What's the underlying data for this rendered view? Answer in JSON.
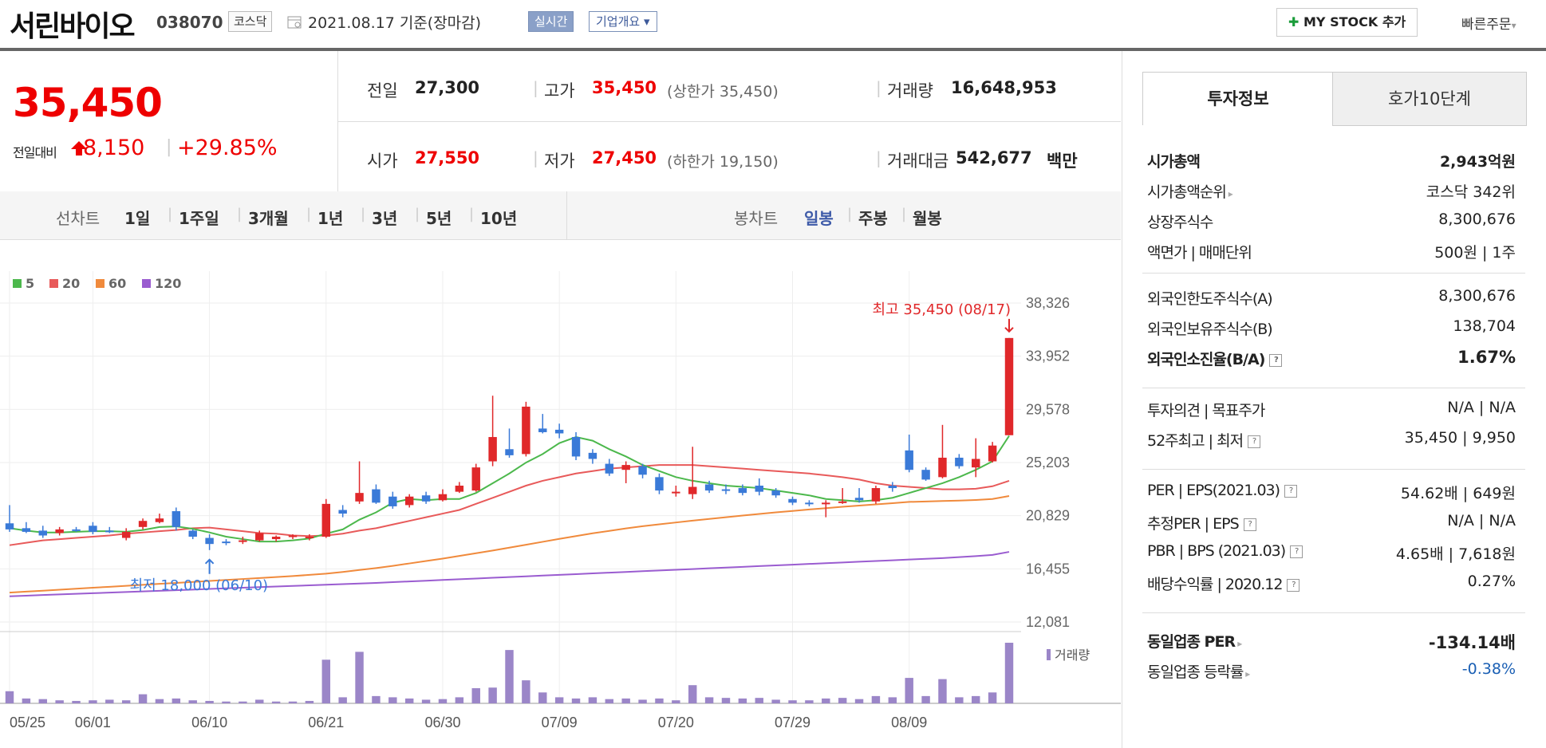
{
  "header": {
    "stock_name": "서린바이오",
    "stock_code": "038070",
    "market": "코스닥",
    "date_text": "2021.08.17 기준(장마감)",
    "realtime_label": "실시간",
    "company_label": "기업개요",
    "mystock_label": "MY STOCK 추가",
    "quick_order_label": "빠른주문"
  },
  "price": {
    "current": "35,450",
    "change_label": "전일대비",
    "change": "8,150",
    "change_pct": "+29.85%",
    "prev_label": "전일",
    "prev": "27,300",
    "high_label": "고가",
    "high": "35,450",
    "upper_limit": "(상한가 35,450)",
    "volume_label": "거래량",
    "volume": "16,648,953",
    "open_label": "시가",
    "open": "27,550",
    "low_label": "저가",
    "low": "27,450",
    "lower_limit": "(하한가 19,150)",
    "amount_label": "거래대금",
    "amount": "542,677",
    "amount_unit": "백만"
  },
  "period_bar": {
    "line_label": "선차트",
    "line_items": [
      "1일",
      "1주일",
      "3개월",
      "1년",
      "3년",
      "5년",
      "10년"
    ],
    "candle_label": "봉차트",
    "candle_items": [
      "일봉",
      "주봉",
      "월봉"
    ],
    "candle_selected": "일봉"
  },
  "panel": {
    "tab_active": "투자정보",
    "tab_other": "호가10단계",
    "rows1": [
      {
        "k": "시가총액",
        "v": "2,943억원"
      },
      {
        "k": "시가총액순위",
        "v": "코스닥 342위"
      },
      {
        "k": "상장주식수",
        "v": "8,300,676"
      },
      {
        "k": "액면가 | 매매단위",
        "v": "500원 | 1주"
      }
    ],
    "rows2": [
      {
        "k": "외국인한도주식수(A)",
        "v": "8,300,676"
      },
      {
        "k": "외국인보유주식수(B)",
        "v": "138,704"
      },
      {
        "k": "외국인소진율(B/A)",
        "v": "1.67%"
      }
    ],
    "rows3": [
      {
        "k": "투자의견 | 목표주가",
        "v": "N/A | N/A"
      },
      {
        "k": "52주최고 | 최저",
        "v": "35,450 | 9,950"
      }
    ],
    "rows4": [
      {
        "k": "PER | EPS(2021.03)",
        "v": "54.62배 | 649원"
      },
      {
        "k": "추정PER | EPS",
        "v": "N/A | N/A"
      },
      {
        "k": "PBR | BPS (2021.03)",
        "v": "4.65배 | 7,618원"
      },
      {
        "k": "배당수익률 | 2020.12",
        "v": "0.27%"
      }
    ],
    "rows5": [
      {
        "k": "동일업종 PER",
        "v": "-134.14배"
      },
      {
        "k": "동일업종 등락률",
        "v": "-0.38%"
      }
    ],
    "help_glyph": "?",
    "colors": {
      "red": "#e00000",
      "blue": "#1a5fb4"
    }
  },
  "chart_data": {
    "type": "candlestick",
    "legend": [
      {
        "name": "5",
        "color": "#4cb84c"
      },
      {
        "name": "20",
        "color": "#e85a5a"
      },
      {
        "name": "60",
        "color": "#f08a3c"
      },
      {
        "name": "120",
        "color": "#9a5cd0"
      }
    ],
    "yticks": [
      "38,326",
      "33,952",
      "29,578",
      "25,203",
      "20,829",
      "16,455",
      "12,081"
    ],
    "ylim": [
      12081,
      38326
    ],
    "xticks": [
      "05/25",
      "06/01",
      "06/10",
      "06/21",
      "06/30",
      "07/09",
      "07/20",
      "07/29",
      "08/09"
    ],
    "volume_label": "거래량",
    "max_annotation": "최고 35,450 (08/17)",
    "min_annotation": "최저 18,000 (06/10)",
    "colors": {
      "up": "#e0282a",
      "down": "#3a7ad8"
    },
    "candles": [
      {
        "o": 20200,
        "h": 21700,
        "l": 19500,
        "c": 19700,
        "v": 0.2
      },
      {
        "o": 19800,
        "h": 20300,
        "l": 19400,
        "c": 19500,
        "v": 0.08
      },
      {
        "o": 19600,
        "h": 20000,
        "l": 19000,
        "c": 19200,
        "v": 0.07
      },
      {
        "o": 19400,
        "h": 19900,
        "l": 19200,
        "c": 19700,
        "v": 0.05
      },
      {
        "o": 19700,
        "h": 19900,
        "l": 19500,
        "c": 19600,
        "v": 0.04
      },
      {
        "o": 20000,
        "h": 20300,
        "l": 19300,
        "c": 19500,
        "v": 0.05
      },
      {
        "o": 19600,
        "h": 19900,
        "l": 19400,
        "c": 19500,
        "v": 0.06
      },
      {
        "o": 19000,
        "h": 19800,
        "l": 18800,
        "c": 19500,
        "v": 0.05
      },
      {
        "o": 19900,
        "h": 20600,
        "l": 19700,
        "c": 20400,
        "v": 0.15
      },
      {
        "o": 20300,
        "h": 21000,
        "l": 20200,
        "c": 20600,
        "v": 0.07
      },
      {
        "o": 21200,
        "h": 21500,
        "l": 19600,
        "c": 19900,
        "v": 0.08
      },
      {
        "o": 19600,
        "h": 19700,
        "l": 18900,
        "c": 19100,
        "v": 0.05
      },
      {
        "o": 19000,
        "h": 19300,
        "l": 18000,
        "c": 18500,
        "v": 0.04
      },
      {
        "o": 18700,
        "h": 18900,
        "l": 18400,
        "c": 18600,
        "v": 0.03
      },
      {
        "o": 18700,
        "h": 19100,
        "l": 18500,
        "c": 18800,
        "v": 0.03
      },
      {
        "o": 18800,
        "h": 19600,
        "l": 18700,
        "c": 19400,
        "v": 0.06
      },
      {
        "o": 18900,
        "h": 19200,
        "l": 18700,
        "c": 19100,
        "v": 0.03
      },
      {
        "o": 19100,
        "h": 19300,
        "l": 18900,
        "c": 19200,
        "v": 0.03
      },
      {
        "o": 19000,
        "h": 19300,
        "l": 18800,
        "c": 19100,
        "v": 0.04
      },
      {
        "o": 19100,
        "h": 22200,
        "l": 19000,
        "c": 21800,
        "v": 0.72
      },
      {
        "o": 21300,
        "h": 21700,
        "l": 20700,
        "c": 21000,
        "v": 0.1
      },
      {
        "o": 22000,
        "h": 25300,
        "l": 21800,
        "c": 22700,
        "v": 0.85
      },
      {
        "o": 23000,
        "h": 23400,
        "l": 21800,
        "c": 21900,
        "v": 0.12
      },
      {
        "o": 22400,
        "h": 22800,
        "l": 21400,
        "c": 21600,
        "v": 0.1
      },
      {
        "o": 21700,
        "h": 22600,
        "l": 21500,
        "c": 22400,
        "v": 0.08
      },
      {
        "o": 22500,
        "h": 22800,
        "l": 21800,
        "c": 22000,
        "v": 0.06
      },
      {
        "o": 22100,
        "h": 23000,
        "l": 22000,
        "c": 22600,
        "v": 0.07
      },
      {
        "o": 22800,
        "h": 23600,
        "l": 22700,
        "c": 23300,
        "v": 0.1
      },
      {
        "o": 22900,
        "h": 25100,
        "l": 22800,
        "c": 24800,
        "v": 0.25
      },
      {
        "o": 25300,
        "h": 30700,
        "l": 24900,
        "c": 27300,
        "v": 0.26
      },
      {
        "o": 26300,
        "h": 28000,
        "l": 25600,
        "c": 25800,
        "v": 0.88
      },
      {
        "o": 25900,
        "h": 30200,
        "l": 25700,
        "c": 29800,
        "v": 0.38
      },
      {
        "o": 28000,
        "h": 29200,
        "l": 27600,
        "c": 27700,
        "v": 0.18
      },
      {
        "o": 27900,
        "h": 28400,
        "l": 27200,
        "c": 27600,
        "v": 0.1
      },
      {
        "o": 27300,
        "h": 27700,
        "l": 25400,
        "c": 25700,
        "v": 0.08
      },
      {
        "o": 26000,
        "h": 26300,
        "l": 25100,
        "c": 25500,
        "v": 0.1
      },
      {
        "o": 25100,
        "h": 25500,
        "l": 24100,
        "c": 24300,
        "v": 0.07
      },
      {
        "o": 24600,
        "h": 25300,
        "l": 23500,
        "c": 25000,
        "v": 0.08
      },
      {
        "o": 24900,
        "h": 25100,
        "l": 23900,
        "c": 24200,
        "v": 0.06
      },
      {
        "o": 24000,
        "h": 24300,
        "l": 22600,
        "c": 22900,
        "v": 0.08
      },
      {
        "o": 22800,
        "h": 23300,
        "l": 22400,
        "c": 22800,
        "v": 0.05
      },
      {
        "o": 22600,
        "h": 26500,
        "l": 22200,
        "c": 23200,
        "v": 0.3
      },
      {
        "o": 23400,
        "h": 23700,
        "l": 22700,
        "c": 22900,
        "v": 0.1
      },
      {
        "o": 23000,
        "h": 23400,
        "l": 22600,
        "c": 22900,
        "v": 0.09
      },
      {
        "o": 23100,
        "h": 23400,
        "l": 22500,
        "c": 22700,
        "v": 0.08
      },
      {
        "o": 23300,
        "h": 23900,
        "l": 22500,
        "c": 22800,
        "v": 0.09
      },
      {
        "o": 22900,
        "h": 23100,
        "l": 22300,
        "c": 22500,
        "v": 0.06
      },
      {
        "o": 22200,
        "h": 22400,
        "l": 21700,
        "c": 21900,
        "v": 0.05
      },
      {
        "o": 21900,
        "h": 22100,
        "l": 21600,
        "c": 21800,
        "v": 0.05
      },
      {
        "o": 21800,
        "h": 22100,
        "l": 20700,
        "c": 21900,
        "v": 0.08
      },
      {
        "o": 22000,
        "h": 23100,
        "l": 21800,
        "c": 22000,
        "v": 0.09
      },
      {
        "o": 22300,
        "h": 23100,
        "l": 21900,
        "c": 22100,
        "v": 0.07
      },
      {
        "o": 22000,
        "h": 23300,
        "l": 21800,
        "c": 23100,
        "v": 0.12
      },
      {
        "o": 23300,
        "h": 23600,
        "l": 22800,
        "c": 23100,
        "v": 0.1
      },
      {
        "o": 26200,
        "h": 27500,
        "l": 24400,
        "c": 24600,
        "v": 0.42
      },
      {
        "o": 24600,
        "h": 24800,
        "l": 23700,
        "c": 23800,
        "v": 0.12
      },
      {
        "o": 24000,
        "h": 28300,
        "l": 23900,
        "c": 25600,
        "v": 0.4
      },
      {
        "o": 25600,
        "h": 25900,
        "l": 24700,
        "c": 24900,
        "v": 0.1
      },
      {
        "o": 24800,
        "h": 27200,
        "l": 24000,
        "c": 25500,
        "v": 0.12
      },
      {
        "o": 25300,
        "h": 26900,
        "l": 25200,
        "c": 26600,
        "v": 0.18
      },
      {
        "o": 27450,
        "h": 35450,
        "l": 27450,
        "c": 35450,
        "v": 1.0
      }
    ],
    "ma5": [
      19800,
      19600,
      19450,
      19450,
      19500,
      19550,
      19550,
      19500,
      19650,
      19900,
      19950,
      19750,
      19450,
      19100,
      18900,
      18700,
      18700,
      18800,
      18950,
      19350,
      19700,
      20500,
      21100,
      21900,
      22200,
      22100,
      22200,
      22200,
      22700,
      23500,
      24300,
      25200,
      25900,
      26800,
      27300,
      27000,
      26300,
      25700,
      25000,
      24500,
      24000,
      23700,
      23500,
      23300,
      23200,
      23100,
      22900,
      22700,
      22500,
      22200,
      22100,
      22000,
      22100,
      22300,
      22700,
      23100,
      23500,
      24000,
      24600,
      25300,
      27400
    ],
    "ma20": [
      18400,
      18600,
      18800,
      18900,
      19000,
      19100,
      19200,
      19350,
      19450,
      19550,
      19650,
      19800,
      19850,
      19700,
      19550,
      19400,
      19350,
      19200,
      19150,
      19200,
      19350,
      19600,
      19800,
      20100,
      20400,
      20700,
      21000,
      21300,
      21800,
      22300,
      22800,
      23300,
      23700,
      24000,
      24300,
      24500,
      24700,
      24800,
      24900,
      25000,
      25000,
      25000,
      24900,
      24800,
      24700,
      24600,
      24500,
      24400,
      24300,
      24150,
      24000,
      23800,
      23500,
      23300,
      23200,
      23100,
      23000,
      23000,
      23050,
      23250,
      23700
    ],
    "ma60": [
      14500,
      14580,
      14660,
      14740,
      14820,
      14900,
      14980,
      15060,
      15140,
      15220,
      15300,
      15380,
      15460,
      15540,
      15620,
      15700,
      15780,
      15860,
      15960,
      16060,
      16200,
      16360,
      16520,
      16700,
      16900,
      17100,
      17300,
      17520,
      17740,
      17960,
      18200,
      18440,
      18680,
      18920,
      19150,
      19380,
      19580,
      19780,
      19960,
      20120,
      20270,
      20420,
      20560,
      20700,
      20840,
      20970,
      21100,
      21220,
      21340,
      21450,
      21560,
      21660,
      21760,
      21860,
      21960,
      22000,
      22040,
      22070,
      22120,
      22200,
      22450
    ],
    "ma120": [
      14200,
      14250,
      14300,
      14350,
      14400,
      14450,
      14500,
      14550,
      14600,
      14650,
      14700,
      14750,
      14800,
      14850,
      14900,
      14950,
      15000,
      15050,
      15100,
      15150,
      15200,
      15250,
      15300,
      15360,
      15420,
      15480,
      15540,
      15600,
      15660,
      15720,
      15780,
      15840,
      15900,
      15960,
      16020,
      16080,
      16140,
      16200,
      16260,
      16320,
      16380,
      16440,
      16500,
      16560,
      16620,
      16680,
      16740,
      16800,
      16860,
      16920,
      16980,
      17040,
      17100,
      17160,
      17220,
      17280,
      17340,
      17420,
      17500,
      17600,
      17850
    ]
  }
}
